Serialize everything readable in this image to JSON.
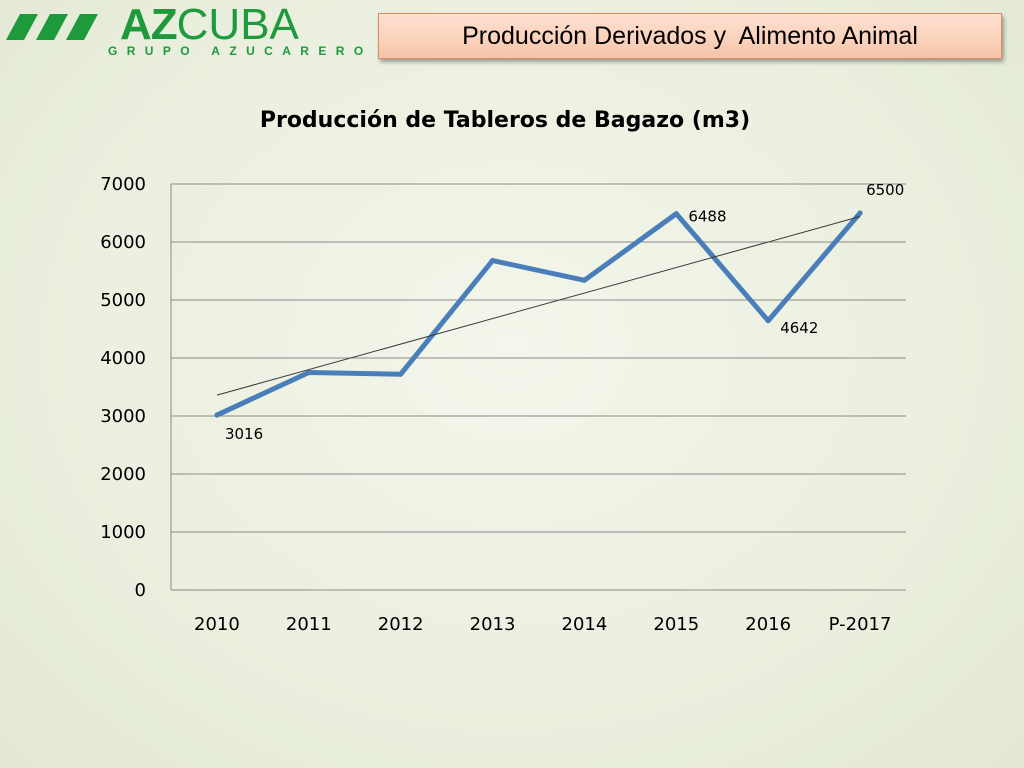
{
  "header": {
    "logo_text_bold": "AZ",
    "logo_text": "CUBA",
    "logo_subtitle": "GRUPO AZUCARERO",
    "section_title": "Producción Derivados y  Alimento Animal"
  },
  "colors": {
    "brand_green": "#1e9a3c",
    "series_line": "#4a7ebb",
    "trendline": "#3a3a3a",
    "banner_fill": "#fbd3bd",
    "banner_border": "#d98c5c"
  },
  "chart_data": {
    "type": "line",
    "title": "Producción de Tableros de Bagazo (m3)",
    "xlabel": "",
    "ylabel": "",
    "categories": [
      "2010",
      "2011",
      "2012",
      "2013",
      "2014",
      "2015",
      "2016",
      "P-2017"
    ],
    "series": [
      {
        "values": [
          3016,
          3750,
          3720,
          5680,
          5340,
          6488,
          4642,
          6500
        ],
        "data_labels": [
          "3016",
          "",
          "",
          "",
          "",
          "6488",
          "4642",
          "6500"
        ]
      }
    ],
    "trendline": {
      "type": "linear",
      "start": 3360,
      "end": 6440
    },
    "ylim": [
      0,
      7000
    ],
    "yticks": [
      "0",
      "1000",
      "2000",
      "3000",
      "4000",
      "5000",
      "6000",
      "7000"
    ],
    "grid": true,
    "legend": "none"
  }
}
